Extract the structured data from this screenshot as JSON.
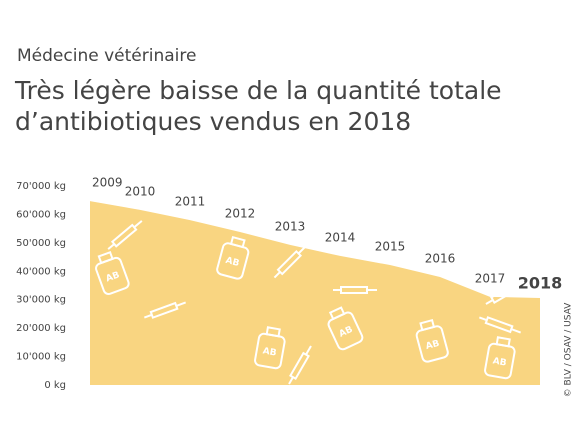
{
  "chart_data": {
    "type": "area",
    "subtitle": "Médecine vétérinaire",
    "title": [
      "Très légère baisse de la quantité totale",
      "d’antibiotiques vendus en 2018"
    ],
    "x": [
      2009,
      2010,
      2011,
      2012,
      2013,
      2014,
      2015,
      2016,
      2017,
      2018
    ],
    "values": [
      64700,
      61600,
      58000,
      53800,
      49300,
      45400,
      42200,
      38000,
      31000,
      30600
    ],
    "xlim": [
      2009,
      2018
    ],
    "ylim": [
      0,
      70000
    ],
    "yticks": [
      {
        "value": 0,
        "label": "0 kg"
      },
      {
        "value": 10000,
        "label": "10'000 kg"
      },
      {
        "value": 20000,
        "label": "20'000 kg"
      },
      {
        "value": 30000,
        "label": "30'000 kg"
      },
      {
        "value": 40000,
        "label": "40'000 kg"
      },
      {
        "value": 50000,
        "label": "50'000 kg"
      },
      {
        "value": 60000,
        "label": "60'000 kg"
      },
      {
        "value": 70000,
        "label": "70'000 kg"
      }
    ],
    "color": "#f9d581",
    "icon_label": "AB",
    "source": "© BLV / OSAV / USAV"
  }
}
